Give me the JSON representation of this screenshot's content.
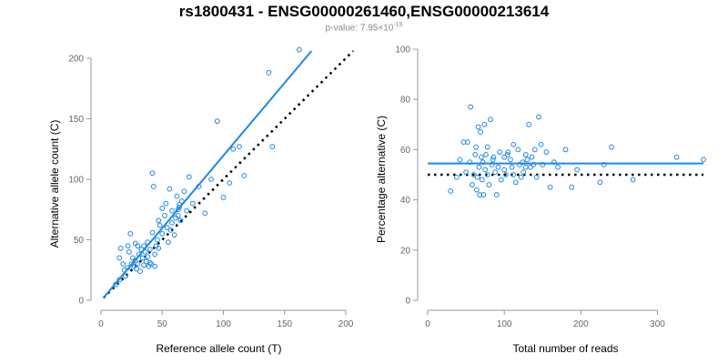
{
  "title": "rs1800431 - ENSG00000261460,ENSG00000213614",
  "subtitle": {
    "prefix": "p-value: 7.95×10",
    "exponent": "-19"
  },
  "colors": {
    "series": "#1e88e5",
    "expected": "#000000",
    "axis": "#999999",
    "tick_text": "#666666"
  },
  "chart_data": [
    {
      "type": "scatter",
      "xlabel": "Reference allele count (T)",
      "ylabel": "Alternative allele count (C)",
      "xlim": [
        0,
        200
      ],
      "ylim": [
        0,
        200
      ],
      "xticks": [
        0,
        50,
        100,
        150,
        200
      ],
      "yticks": [
        0,
        50,
        100,
        150,
        200
      ],
      "fit_line": {
        "style": "solid",
        "from": [
          2,
          2
        ],
        "to": [
          172,
          206
        ]
      },
      "expected_line": {
        "style": "dotted",
        "from": [
          2,
          2
        ],
        "to": [
          206,
          206
        ]
      },
      "points": [
        [
          12,
          13
        ],
        [
          15,
          17
        ],
        [
          16,
          43
        ],
        [
          18,
          30
        ],
        [
          19,
          25
        ],
        [
          20,
          20
        ],
        [
          22,
          27
        ],
        [
          22,
          45
        ],
        [
          23,
          40
        ],
        [
          24,
          55
        ],
        [
          25,
          30
        ],
        [
          26,
          35
        ],
        [
          27,
          28
        ],
        [
          28,
          47
        ],
        [
          29,
          26
        ],
        [
          30,
          30
        ],
        [
          30,
          45
        ],
        [
          31,
          38
        ],
        [
          32,
          24
        ],
        [
          33,
          42
        ],
        [
          34,
          35
        ],
        [
          35,
          29
        ],
        [
          35,
          45
        ],
        [
          36,
          40
        ],
        [
          37,
          32
        ],
        [
          38,
          48
        ],
        [
          38,
          36
        ],
        [
          39,
          28
        ],
        [
          40,
          31
        ],
        [
          40,
          42
        ],
        [
          41,
          30
        ],
        [
          42,
          105
        ],
        [
          42,
          56
        ],
        [
          43,
          94
        ],
        [
          44,
          38
        ],
        [
          45,
          45
        ],
        [
          46,
          50
        ],
        [
          47,
          66
        ],
        [
          48,
          62
        ],
        [
          50,
          55
        ],
        [
          50,
          76
        ],
        [
          52,
          70
        ],
        [
          53,
          80
        ],
        [
          54,
          60
        ],
        [
          55,
          48
        ],
        [
          56,
          92
        ],
        [
          57,
          58
        ],
        [
          58,
          64
        ],
        [
          58,
          74
        ],
        [
          60,
          54
        ],
        [
          61,
          68
        ],
        [
          62,
          86
        ],
        [
          63,
          75
        ],
        [
          64,
          79
        ],
        [
          65,
          66
        ],
        [
          66,
          82
        ],
        [
          68,
          90
        ],
        [
          70,
          74
        ],
        [
          72,
          102
        ],
        [
          75,
          80
        ],
        [
          80,
          94
        ],
        [
          85,
          72
        ],
        [
          90,
          100
        ],
        [
          95,
          148
        ],
        [
          100,
          85
        ],
        [
          105,
          97
        ],
        [
          108,
          125
        ],
        [
          113,
          127
        ],
        [
          117,
          103
        ],
        [
          137,
          188
        ],
        [
          140,
          127
        ],
        [
          162,
          207
        ],
        [
          15,
          35
        ],
        [
          28,
          33
        ],
        [
          44,
          28
        ],
        [
          47,
          43
        ],
        [
          63,
          70
        ],
        [
          64,
          77
        ]
      ]
    },
    {
      "type": "scatter",
      "xlabel": "Total number of reads",
      "ylabel": "Percentage alternative (C)",
      "xlim": [
        0,
        360
      ],
      "ylim": [
        0,
        100
      ],
      "xticks": [
        0,
        100,
        200,
        300
      ],
      "yticks": [
        0,
        20,
        40,
        60,
        80,
        100
      ],
      "fit_line": {
        "style": "solid",
        "from": [
          0,
          54.5
        ],
        "to": [
          360,
          54.5
        ]
      },
      "expected_line": {
        "style": "dotted",
        "from": [
          0,
          50
        ],
        "to": [
          360,
          50
        ]
      },
      "points": [
        [
          30,
          43.5
        ],
        [
          38,
          49
        ],
        [
          42,
          56
        ],
        [
          47,
          63
        ],
        [
          50,
          51
        ],
        [
          52,
          63
        ],
        [
          55,
          55
        ],
        [
          56,
          77
        ],
        [
          58,
          46
        ],
        [
          60,
          50
        ],
        [
          62,
          58
        ],
        [
          63,
          61
        ],
        [
          64,
          44
        ],
        [
          65,
          49
        ],
        [
          66,
          69
        ],
        [
          67,
          53
        ],
        [
          68,
          42
        ],
        [
          69,
          67
        ],
        [
          70,
          57
        ],
        [
          71,
          48
        ],
        [
          72,
          55
        ],
        [
          73,
          42
        ],
        [
          74,
          70
        ],
        [
          75,
          52
        ],
        [
          76,
          58
        ],
        [
          78,
          61
        ],
        [
          80,
          46
        ],
        [
          82,
          72
        ],
        [
          84,
          54
        ],
        [
          85,
          56
        ],
        [
          88,
          51
        ],
        [
          90,
          42
        ],
        [
          92,
          53
        ],
        [
          94,
          59
        ],
        [
          96,
          48
        ],
        [
          100,
          57
        ],
        [
          102,
          50
        ],
        [
          105,
          59
        ],
        [
          108,
          56
        ],
        [
          110,
          53
        ],
        [
          112,
          50
        ],
        [
          115,
          47
        ],
        [
          118,
          60
        ],
        [
          120,
          54
        ],
        [
          122,
          49
        ],
        [
          124,
          55
        ],
        [
          125,
          51
        ],
        [
          128,
          58
        ],
        [
          130,
          56
        ],
        [
          132,
          70
        ],
        [
          134,
          53
        ],
        [
          136,
          57
        ],
        [
          138,
          54
        ],
        [
          140,
          60
        ],
        [
          142,
          49
        ],
        [
          145,
          73
        ],
        [
          148,
          62
        ],
        [
          150,
          54
        ],
        [
          155,
          59
        ],
        [
          160,
          45
        ],
        [
          165,
          55
        ],
        [
          170,
          53
        ],
        [
          180,
          60
        ],
        [
          188,
          45
        ],
        [
          195,
          52
        ],
        [
          225,
          47
        ],
        [
          230,
          54
        ],
        [
          240,
          61
        ],
        [
          268,
          48
        ],
        [
          325,
          57
        ],
        [
          360,
          56
        ],
        [
          78,
          50
        ],
        [
          86,
          57
        ],
        [
          100,
          52
        ],
        [
          104,
          58
        ],
        [
          112,
          62
        ],
        [
          128,
          53
        ]
      ]
    }
  ]
}
